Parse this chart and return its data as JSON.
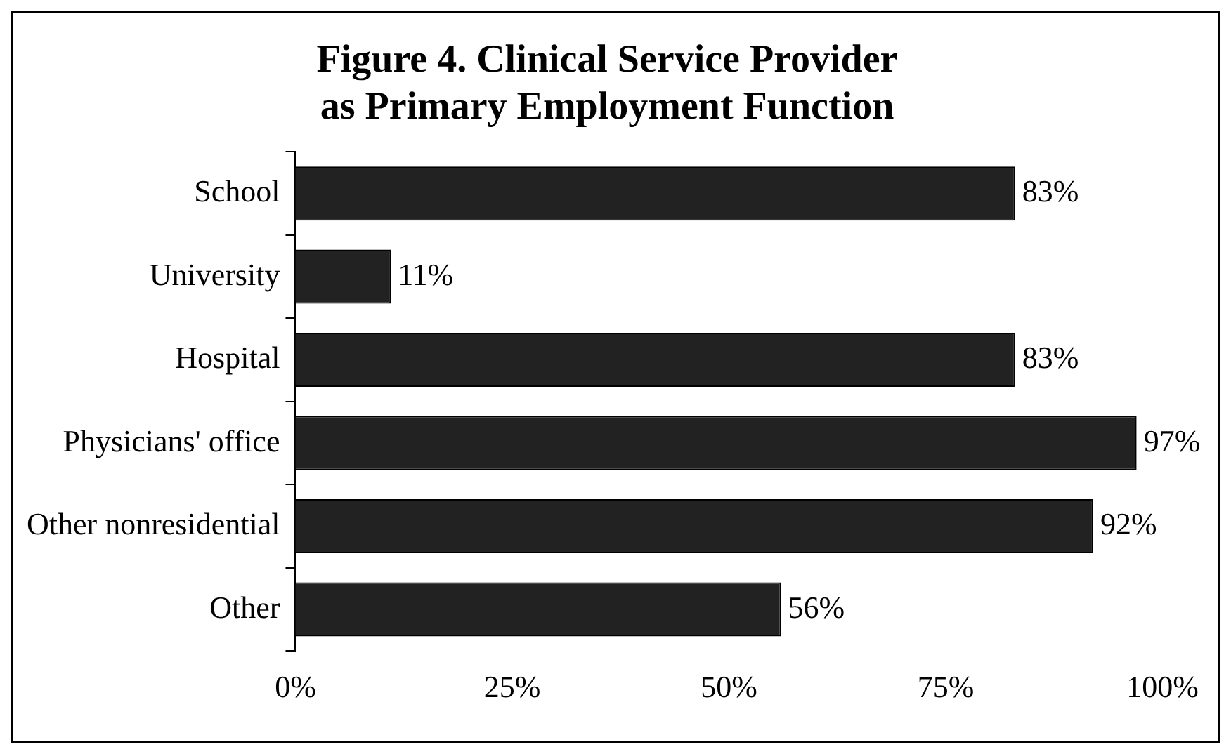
{
  "chart_data": {
    "type": "bar",
    "orientation": "horizontal",
    "title": [
      "Figure 4. Clinical Service Provider",
      "as Primary Employment Function"
    ],
    "categories": [
      "School",
      "University",
      "Hospital",
      "Physicians' office",
      "Other nonresidential",
      "Other"
    ],
    "values": [
      83,
      11,
      83,
      97,
      92,
      56
    ],
    "value_labels": [
      "83%",
      "11%",
      "83%",
      "97%",
      "92%",
      "56%"
    ],
    "color": "#222222",
    "xlim": [
      0,
      100
    ],
    "xticks": [
      {
        "value": 0,
        "label": "0%"
      },
      {
        "value": 25,
        "label": "25%"
      },
      {
        "value": 50,
        "label": "50%"
      },
      {
        "value": 75,
        "label": "75%"
      },
      {
        "value": 100,
        "label": "100%"
      }
    ],
    "grid": false,
    "legend": false
  }
}
